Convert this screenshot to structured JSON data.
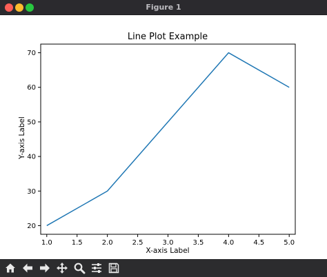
{
  "window": {
    "title": "Figure 1"
  },
  "toolbar": {
    "buttons": [
      {
        "name": "home",
        "icon": "home-icon"
      },
      {
        "name": "back",
        "icon": "arrow-left-icon"
      },
      {
        "name": "forward",
        "icon": "arrow-right-icon"
      },
      {
        "name": "pan",
        "icon": "move-icon"
      },
      {
        "name": "zoom",
        "icon": "magnifier-icon"
      },
      {
        "name": "configure",
        "icon": "sliders-icon"
      },
      {
        "name": "save",
        "icon": "floppy-disk-icon"
      }
    ]
  },
  "chart_data": {
    "type": "line",
    "title": "Line Plot Example",
    "xlabel": "X-axis Label",
    "ylabel": "Y-axis Label",
    "x": [
      1,
      2,
      3,
      4,
      5
    ],
    "series": [
      {
        "values": [
          20,
          30,
          50,
          70,
          60
        ],
        "color": "#1f77b4"
      }
    ],
    "xlim": [
      0.9,
      5.1
    ],
    "ylim": [
      17.5,
      72.5
    ],
    "xticks": [
      1.0,
      1.5,
      2.0,
      2.5,
      3.0,
      3.5,
      4.0,
      4.5,
      5.0
    ],
    "xtick_labels": [
      "1.0",
      "1.5",
      "2.0",
      "2.5",
      "3.0",
      "3.5",
      "4.0",
      "4.5",
      "5.0"
    ],
    "yticks": [
      20,
      30,
      40,
      50,
      60,
      70
    ],
    "ytick_labels": [
      "20",
      "30",
      "40",
      "50",
      "60",
      "70"
    ],
    "grid": false,
    "legend": "none"
  }
}
